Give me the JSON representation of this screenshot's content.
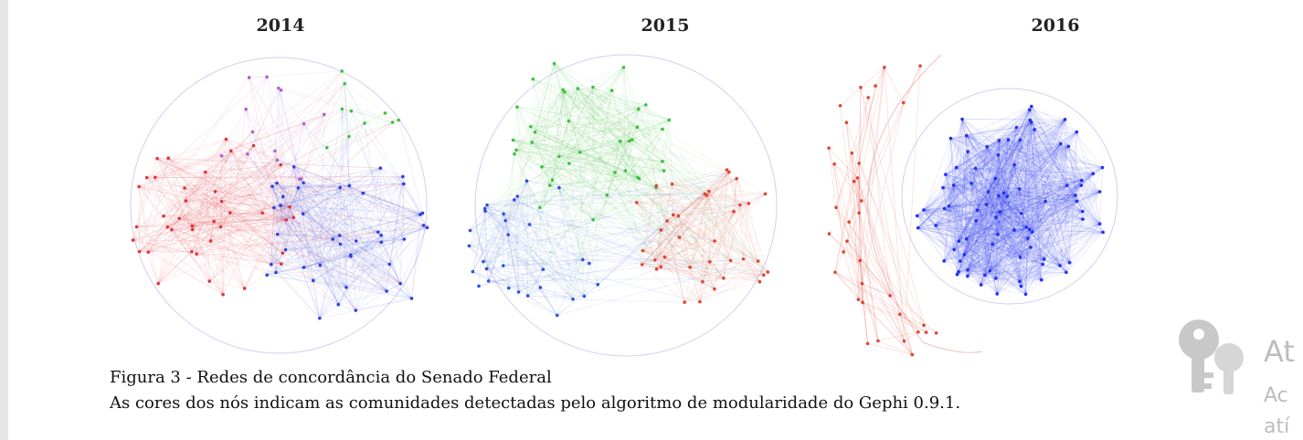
{
  "figures": [
    {
      "title": "2014"
    },
    {
      "title": "2015"
    },
    {
      "title": "2016"
    }
  ],
  "caption": {
    "line1": "Figura 3 - Redes de concordância do Senado Federal",
    "line2": "As cores dos nós indicam as comunidades detectadas pelo algoritmo de modularidade do Gephi 0.9.1."
  },
  "watermark": {
    "line1": "At",
    "line2": "Ac",
    "line3": "atí"
  }
}
